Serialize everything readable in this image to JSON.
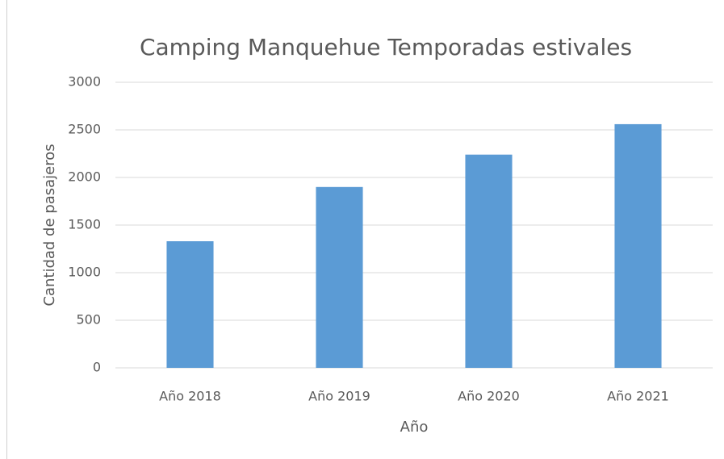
{
  "chart_data": {
    "type": "bar",
    "title": "Camping Manquehue Temporadas estivales",
    "x_label": "Año",
    "y_label": "Cantidad de pasajeros",
    "categories": [
      "Año 2018",
      "Año 2019",
      "Año 2020",
      "Año 2021"
    ],
    "values": [
      1330,
      1900,
      2240,
      2560
    ],
    "color": "#5b9bd5",
    "ylim": [
      0,
      3000
    ],
    "yticks": [
      0,
      500,
      1000,
      1500,
      2000,
      2500,
      3000
    ],
    "grid": true
  }
}
